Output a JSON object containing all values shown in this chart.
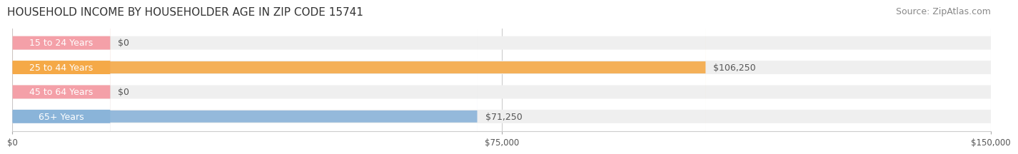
{
  "title": "HOUSEHOLD INCOME BY HOUSEHOLDER AGE IN ZIP CODE 15741",
  "source": "Source: ZipAtlas.com",
  "categories": [
    "15 to 24 Years",
    "25 to 44 Years",
    "45 to 64 Years",
    "65+ Years"
  ],
  "values": [
    0,
    106250,
    0,
    71250
  ],
  "bar_colors": [
    "#f4a0a8",
    "#f5a947",
    "#f4a0a8",
    "#8ab4d9"
  ],
  "bar_bg_color": "#efefef",
  "label_colors": [
    "#555555",
    "#555555",
    "#555555",
    "#555555"
  ],
  "value_labels": [
    "$0",
    "$106,250",
    "$0",
    "$71,250"
  ],
  "xlim": [
    0,
    150000
  ],
  "xticks": [
    0,
    75000,
    150000
  ],
  "xtick_labels": [
    "$0",
    "$75,000",
    "$150,000"
  ],
  "title_fontsize": 11,
  "source_fontsize": 9,
  "label_fontsize": 9,
  "bar_height": 0.55,
  "background_color": "#ffffff"
}
